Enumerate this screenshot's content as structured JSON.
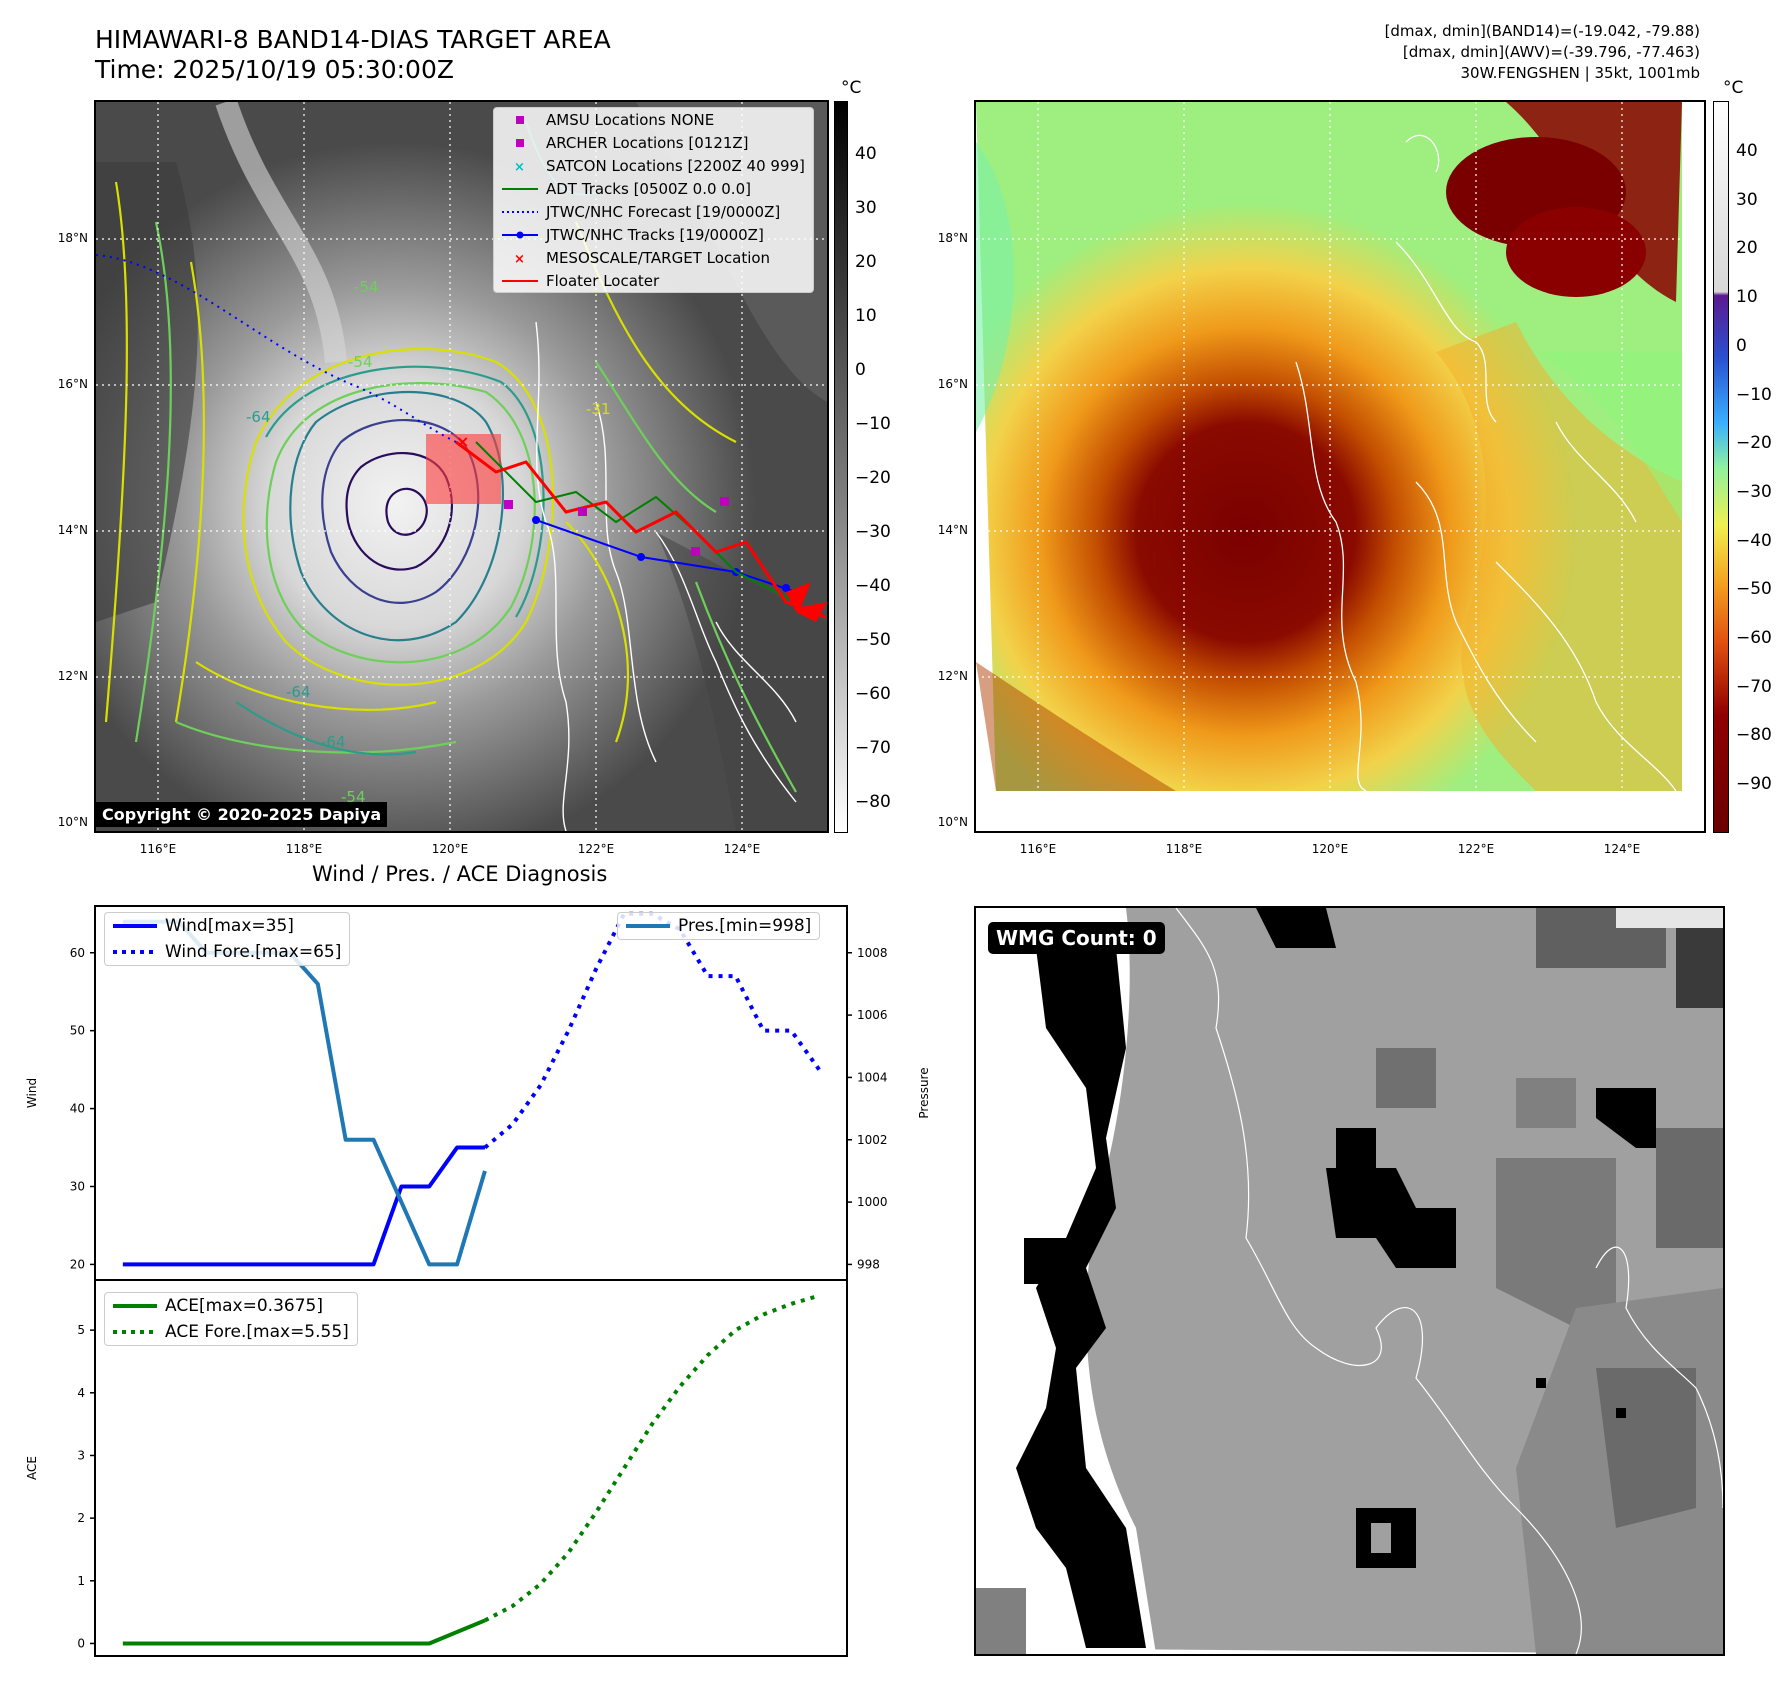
{
  "header": {
    "title": "HIMAWARI-8 BAND14-DIAS TARGET AREA",
    "time": "Time: 2025/10/19 05:30:00Z",
    "info_line1": "[dmax, dmin](BAND14)=(-19.042, -79.88)",
    "info_line2": "[dmax, dmin](AWV)=(-39.796, -77.463)",
    "info_line3": "30W.FENGSHEN | 35kt, 1001mb"
  },
  "map_axes": {
    "lat_ticks": [
      "18°N",
      "16°N",
      "14°N",
      "12°N",
      "10°N"
    ],
    "lon_ticks": [
      "116°E",
      "118°E",
      "120°E",
      "122°E",
      "124°E"
    ]
  },
  "left_colorbar": {
    "unit": "°C",
    "ticks": [
      "40",
      "30",
      "20",
      "10",
      "0",
      "−10",
      "−20",
      "−30",
      "−40",
      "−50",
      "−60",
      "−70",
      "−80"
    ]
  },
  "right_colorbar": {
    "unit": "°C",
    "ticks": [
      "40",
      "30",
      "20",
      "10",
      "0",
      "−10",
      "−20",
      "−30",
      "−40",
      "−50",
      "−60",
      "−70",
      "−80",
      "−90"
    ]
  },
  "map_legend": {
    "amsu": "AMSU Locations NONE",
    "archer": "ARCHER Locations [0121Z]",
    "satcon": "SATCON Locations [2200Z 40 999]",
    "adt": "ADT Tracks [0500Z 0.0 0.0]",
    "jtwc_forecast": "JTWC/NHC Forecast [19/0000Z]",
    "jtwc_tracks": "JTWC/NHC Tracks [19/0000Z]",
    "mesoscale": "MESOSCALE/TARGET Location",
    "floater": "Floater Locater"
  },
  "contour_labels": [
    "-54",
    "-54",
    "-64",
    "-31",
    "-64",
    "-54",
    "-64"
  ],
  "copyright": "Copyright © 2020-2025 Dapiya",
  "diagnosis_title": "Wind / Pres. / ACE Diagnosis",
  "wmg_label": "WMG Count: 0",
  "colors": {
    "wind": "#0000ff",
    "pressure": "#1f77b4",
    "ace": "#008000",
    "track_red": "#ff0000",
    "marker_magenta": "#bf00bf",
    "marker_cyan": "#00bfbf"
  },
  "chart_data": [
    {
      "type": "line",
      "ylabel": "Wind",
      "ylim": [
        18,
        66
      ],
      "yticks": [
        "60",
        "50",
        "40",
        "30",
        "20"
      ],
      "series": [
        {
          "name": "Wind[max=35]",
          "style": "solid",
          "color": "#0000ff",
          "x": [
            0,
            9,
            10,
            11,
            12,
            13
          ],
          "values": [
            20,
            20,
            30,
            30,
            35,
            35
          ]
        },
        {
          "name": "Wind Fore.[max=65]",
          "style": "dotted",
          "color": "#0000ff",
          "x": [
            13,
            14,
            15,
            16,
            17,
            18,
            19,
            20,
            21,
            22,
            23,
            24,
            25
          ],
          "values": [
            35,
            38,
            43,
            50,
            58,
            65,
            65,
            63,
            57,
            57,
            50,
            50,
            45
          ]
        }
      ]
    },
    {
      "type": "line",
      "ylabel": "Pressure",
      "ylim": [
        997.5,
        1009.5
      ],
      "yticks": [
        "1008",
        "1006",
        "1004",
        "1002",
        "1000",
        "998"
      ],
      "series": [
        {
          "name": "Pres.[min=998]",
          "style": "solid",
          "color": "#1f77b4",
          "x": [
            0,
            2,
            3,
            6,
            7,
            8,
            9,
            10,
            11,
            12,
            13
          ],
          "values": [
            1009,
            1009,
            1008,
            1008,
            1007,
            1002,
            1002,
            1000,
            998,
            998,
            1001
          ]
        }
      ]
    },
    {
      "type": "line",
      "ylabel": "ACE",
      "ylim": [
        -0.2,
        5.8
      ],
      "yticks": [
        "5",
        "4",
        "3",
        "2",
        "1",
        "0"
      ],
      "series": [
        {
          "name": "ACE[max=0.3675]",
          "style": "solid",
          "color": "#008000",
          "x": [
            0,
            11,
            13
          ],
          "values": [
            0,
            0,
            0.3675
          ]
        },
        {
          "name": "ACE Fore.[max=5.55]",
          "style": "dotted",
          "color": "#008000",
          "x": [
            13,
            14,
            15,
            16,
            17,
            18,
            19,
            20,
            21,
            22,
            23,
            24,
            25
          ],
          "values": [
            0.3675,
            0.6,
            0.95,
            1.45,
            2.1,
            2.8,
            3.5,
            4.1,
            4.6,
            5.0,
            5.25,
            5.42,
            5.55
          ]
        }
      ]
    }
  ]
}
